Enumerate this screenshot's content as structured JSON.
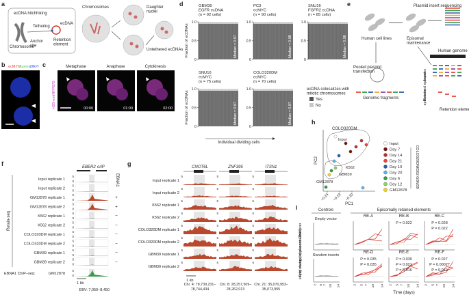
{
  "a": {
    "label": "a",
    "title": "ecDNA hitchhiking",
    "chromosome": "Chromosome",
    "tethering": "Tethering",
    "ecdna": "ecDNA",
    "retention": [
      "Retention",
      "element"
    ],
    "anchor": [
      "Anchor",
      "site"
    ],
    "chromosomes": "Chromosomes",
    "daughter": [
      "Daughter",
      "nuclei"
    ],
    "untethered": "Untethered ecDNAs"
  },
  "b": {
    "label": "b",
    "stains": [
      "ecMYC",
      "Aurora B",
      "DAPI"
    ]
  },
  "c": {
    "label": "c",
    "phases": [
      "Metaphase",
      "Anaphase",
      "Cytokinesis"
    ],
    "times": [
      "00:00",
      "01:00",
      "02:00"
    ],
    "marker": "H2B-emiRFP670"
  },
  "d": {
    "label": "d",
    "y_label": "Fraction of ecDNAs",
    "x_label": "Individual dividing cells",
    "ylim": [
      0,
      1
    ],
    "yticks": [
      0,
      0.5,
      {
        "value": 1,
        "label": "1.0"
      }
    ],
    "charts": [
      {
        "lines": [
          "GBM39",
          "EGFR ecDNA",
          "(n = 92 cells)"
        ],
        "median": 0.97,
        "median_label": "Median = 0.97"
      },
      {
        "lines": [
          "PC3",
          "ecMYC",
          "(n = 90 cells)"
        ],
        "median": 0.98,
        "median_label": "Median = 0.98"
      },
      {
        "lines": [
          "SNU16",
          "FGFR2 ecDNA",
          "(n = 85 cells)"
        ],
        "median": 0.98,
        "median_label": "Median = 0.98"
      },
      {
        "lines": [
          "SNU16",
          "ecMYC",
          "(n = 75 cells)"
        ],
        "median": 0.97,
        "median_label": "Median = 0.97"
      },
      {
        "lines": [
          "COLO320DM",
          "ecMYC",
          "(n = 70 cells)"
        ],
        "median": 0.97,
        "median_label": "Median = 0.97"
      }
    ],
    "legend_title": [
      "ecDNA colocalizes with",
      "mitotic chromosomes"
    ],
    "legend": [
      "Yes",
      "No"
    ]
  },
  "e": {
    "label": "e",
    "sequencing": "Plasmid insert sequencing",
    "cell_lines": "Human cell lines",
    "maintenance": [
      "Episomal",
      "maintenance"
    ],
    "genome": "Human genome",
    "transfection": [
      "Pooled plasmid",
      "transfection"
    ],
    "fragments": "Genomic fragments",
    "input": [
      "Input",
      "episomes"
    ],
    "retained": [
      "Retained",
      "episomes"
    ],
    "elements": "Retention elements"
  },
  "f": {
    "label": "f",
    "loci": [
      "EBER2",
      "oriP"
    ],
    "ebna1": "EBNA1",
    "retain_seq": "Retain-seq",
    "track_ticks": [
      5,
      0
    ],
    "tracks": [
      {
        "name": "Input replicate 1",
        "sign": null
      },
      {
        "name": "Input replicate 2",
        "sign": null
      },
      {
        "name": "GM12878 replicate 1",
        "sign": "+"
      },
      {
        "name": "GM12878 replicate 2",
        "sign": "+"
      },
      {
        "name": "K562 replicate 1",
        "sign": "−"
      },
      {
        "name": "K562 replicate 2",
        "sign": "−"
      },
      {
        "name": "COLO320DM replicate 1",
        "sign": "−"
      },
      {
        "name": "COLO320DM replicate 2",
        "sign": "−"
      },
      {
        "name": "GBM39 replicate 1",
        "sign": "−"
      },
      {
        "name": "GBM39 replicate 2",
        "sign": "−"
      }
    ],
    "chip": "EBNA1 ChIP–seq:",
    "chip_cell": "GM12878",
    "scale": "1 kb",
    "coords": "EBV: 7,050–8,450"
  },
  "g": {
    "label": "g",
    "genes": [
      "CNOT6L",
      "ZNF395",
      "ITSN1"
    ],
    "track_tick": 5,
    "tracks": [
      "Input replicate 1",
      "Input replicate 2",
      "K562 replicate 1",
      "K562 replicate 2",
      "COLO320DM replicate 1",
      "COLO320DM replicate 2",
      "GBM39 replicate 1",
      "GBM39 replicate 2"
    ],
    "scale": "1 kb",
    "coords": [
      [
        "Chr. 4: 78,739,231–",
        "78,744,434"
      ],
      [
        "Chr. 8: 28,257,509–",
        "28,262,013"
      ],
      [
        "Chr. 21: 35,070,953–",
        "35,073,955"
      ]
    ]
  },
  "h": {
    "label": "h",
    "x_label": "PC1",
    "y_label": "PC2",
    "xticks": [
      {
        "value": -0.24,
        "label": "−0.24"
      },
      {
        "value": -0.23,
        "label": "−0.23"
      },
      {
        "value": -0.2,
        "label": "−0.20"
      }
    ],
    "annotations": [
      "COLO320DM",
      "Input",
      "K562",
      "GBM39",
      "GM12878"
    ],
    "legend": [
      {
        "name": "Input",
        "color": "#ffffff"
      },
      {
        "name": "Day 7",
        "color": "#7a1010"
      },
      {
        "name": "Day 14",
        "color": "#b8332a"
      },
      {
        "name": "Day 21",
        "color": "#e8463a"
      },
      {
        "name": "Day 10",
        "color": "#2a5caa"
      },
      {
        "name": "Day 20",
        "color": "#5fb2e6"
      },
      {
        "name": "Day 6",
        "color": "#2e9e44"
      },
      {
        "name": "Day 12",
        "color": "#8fd16a"
      },
      {
        "name": "GM12878",
        "color": "#f2d230"
      }
    ],
    "groups": [
      "COLO320DM",
      "K562",
      "GBM39"
    ]
  },
  "i": {
    "label": "i",
    "controls": "Controls",
    "retained": "Episomally retained elements",
    "empty": "Empty vector",
    "random": "Random inserts",
    "y_label": [
      "Fold change of plasmid DNA over",
      "empty vector (input-normalized)"
    ],
    "x_label": "Time (days)",
    "xticks": [
      2,
      5,
      7,
      10,
      14
    ],
    "elements": [
      {
        "name": "RE-A",
        "p": []
      },
      {
        "name": "RE-B",
        "p": [
          "P = 0.022"
        ]
      },
      {
        "name": "RE-C",
        "p": [
          "P = 0.028",
          "P = 0.022"
        ]
      },
      {
        "name": "RE-D",
        "p": [
          "P = 0.035",
          "P = 0.035"
        ]
      },
      {
        "name": "RE-E",
        "p": [
          "P = 0.030",
          "P = 0.021",
          "P = 0.016"
        ]
      },
      {
        "name": "RE-F",
        "p": [
          "P = 0.027",
          "P = 0.00027",
          "P = 0.019"
        ]
      }
    ]
  }
}
